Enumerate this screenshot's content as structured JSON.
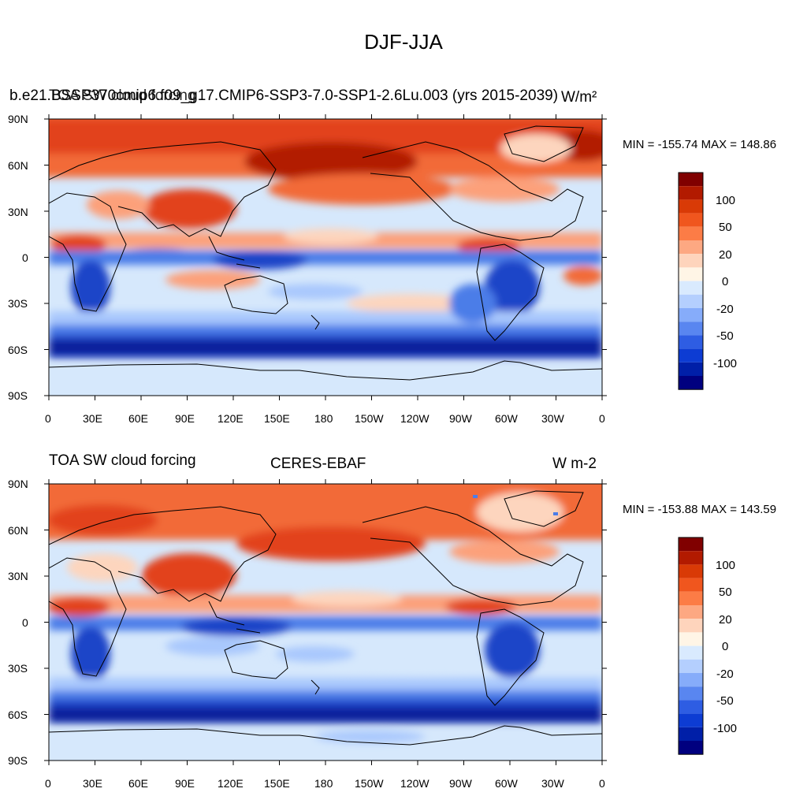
{
  "figure": {
    "title": "DJF-JJA"
  },
  "panels": [
    {
      "title_left": "b.e21.BSSP370cmip6.f09_g17.CMIP6-SSP3-7.0-SSP1-2.6Lu.003 (yrs 2015-2039)",
      "title_left_overlay": "TOA SW cloud forcing",
      "title_right": "W/m²",
      "minmax": "MIN = -155.74 MAX = 148.86"
    },
    {
      "title_left": "TOA SW cloud forcing",
      "title_center": "CERES-EBAF",
      "title_right": "W m-2",
      "minmax": "MIN = -153.88 MAX = 143.59"
    }
  ],
  "axes": {
    "lat_labels": [
      "90N",
      "60N",
      "30N",
      "0",
      "30S",
      "60S",
      "90S"
    ],
    "lon_labels": [
      "0",
      "30E",
      "60E",
      "90E",
      "120E",
      "150E",
      "180",
      "150W",
      "120W",
      "90W",
      "60W",
      "30W",
      "0"
    ]
  },
  "colorbar": {
    "labels": [
      "100",
      "50",
      "20",
      "0",
      "-20",
      "-50",
      "-100"
    ],
    "colors": [
      "#800000",
      "#b21a00",
      "#d93a06",
      "#f0561e",
      "#fc7c46",
      "#fda882",
      "#fed4bc",
      "#fff5e6",
      "#d9eafe",
      "#b4cffe",
      "#86acfa",
      "#5986f0",
      "#2e5de3",
      "#0d3cd3",
      "#001fa8",
      "#00007f"
    ]
  },
  "map_colors": {
    "ocean_neutral": "#d6e8fc",
    "red_strong": "#e2431a",
    "red_mid": "#f26a38",
    "red_light": "#fca07a",
    "red_pale": "#fdd5be",
    "blue_light": "#a9c8fd",
    "blue_mid": "#4c7de8",
    "blue_strong": "#1e44c8",
    "blue_dark": "#0a1d9a",
    "coast": "#000000"
  }
}
